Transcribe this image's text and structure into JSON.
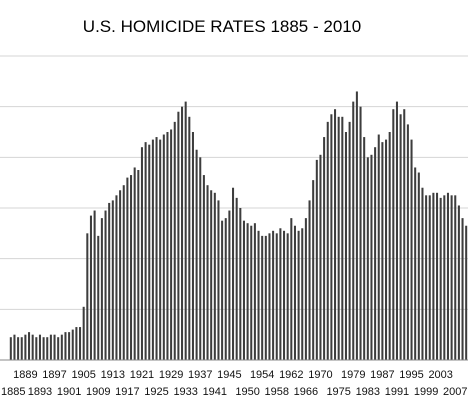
{
  "colors": {
    "bar": "#3d3d3d",
    "gridline": "#d4d4d4",
    "background": "#ffffff",
    "text": "#111111"
  },
  "chart_data": {
    "type": "bar",
    "title": "U.S. HOMICIDE RATES 1885 - 2010",
    "xlabel": "",
    "ylabel": "",
    "grid": true,
    "legend": "none",
    "ylim": [
      0,
      12
    ],
    "y_axis_labels_shown": false,
    "tick_labels_row1": [
      "1889",
      "1897",
      "1905",
      "1913",
      "1921",
      "1929",
      "1937",
      "1945",
      "1954",
      "1962",
      "1970",
      "1979",
      "1987",
      "1995",
      "2003"
    ],
    "tick_labels_row2": [
      "1885",
      "1893",
      "1901",
      "1909",
      "1917",
      "1925",
      "1933",
      "1941",
      "1950",
      "1958",
      "1966",
      "1975",
      "1983",
      "1991",
      "1999",
      "2007"
    ],
    "categories": [
      1885,
      1886,
      1887,
      1888,
      1889,
      1890,
      1891,
      1892,
      1893,
      1894,
      1895,
      1896,
      1897,
      1898,
      1899,
      1900,
      1901,
      1902,
      1903,
      1904,
      1905,
      1906,
      1907,
      1908,
      1909,
      1910,
      1911,
      1912,
      1913,
      1914,
      1915,
      1916,
      1917,
      1918,
      1919,
      1920,
      1921,
      1922,
      1923,
      1924,
      1925,
      1926,
      1927,
      1928,
      1929,
      1930,
      1931,
      1932,
      1933,
      1934,
      1935,
      1936,
      1937,
      1938,
      1939,
      1940,
      1941,
      1942,
      1943,
      1944,
      1945,
      1946,
      1947,
      1948,
      1949,
      1950,
      1951,
      1952,
      1953,
      1954,
      1955,
      1956,
      1957,
      1958,
      1959,
      1960,
      1961,
      1962,
      1963,
      1964,
      1965,
      1966,
      1967,
      1968,
      1969,
      1970,
      1971,
      1972,
      1973,
      1974,
      1975,
      1976,
      1977,
      1978,
      1979,
      1980,
      1981,
      1982,
      1983,
      1984,
      1985,
      1986,
      1987,
      1988,
      1989,
      1990,
      1991,
      1992,
      1993,
      1994,
      1995,
      1996,
      1997,
      1998,
      1999,
      2000,
      2001,
      2002,
      2003,
      2004,
      2005,
      2006,
      2007,
      2008,
      2009,
      2010
    ],
    "values": [
      0.9,
      1.0,
      0.9,
      0.9,
      1.0,
      1.1,
      1.0,
      0.9,
      1.0,
      0.9,
      0.9,
      1.0,
      1.0,
      0.9,
      1.0,
      1.1,
      1.1,
      1.2,
      1.3,
      1.3,
      2.1,
      5.0,
      5.7,
      5.9,
      4.9,
      5.6,
      5.9,
      6.2,
      6.3,
      6.5,
      6.7,
      6.9,
      7.2,
      7.3,
      7.6,
      7.5,
      8.4,
      8.6,
      8.5,
      8.7,
      8.8,
      8.7,
      8.9,
      9.0,
      9.1,
      9.4,
      9.8,
      10.0,
      10.2,
      9.6,
      9.0,
      8.3,
      8.0,
      7.3,
      6.9,
      6.7,
      6.6,
      6.3,
      5.5,
      5.6,
      5.9,
      6.8,
      6.4,
      6.0,
      5.5,
      5.4,
      5.3,
      5.4,
      5.1,
      4.9,
      4.9,
      5.0,
      5.1,
      5.0,
      5.2,
      5.1,
      5.0,
      5.6,
      5.3,
      5.1,
      5.2,
      5.6,
      6.3,
      7.1,
      7.9,
      8.1,
      8.8,
      9.4,
      9.7,
      9.9,
      9.6,
      9.6,
      9.0,
      9.4,
      10.2,
      10.6,
      10.0,
      8.8,
      8.0,
      8.1,
      8.4,
      8.9,
      8.6,
      8.7,
      9.0,
      9.9,
      10.2,
      9.7,
      9.9,
      9.3,
      8.7,
      7.6,
      7.4,
      6.8,
      6.5,
      6.5,
      6.6,
      6.6,
      6.4,
      6.5,
      6.6,
      6.5,
      6.5,
      6.1,
      5.6,
      5.3
    ]
  }
}
